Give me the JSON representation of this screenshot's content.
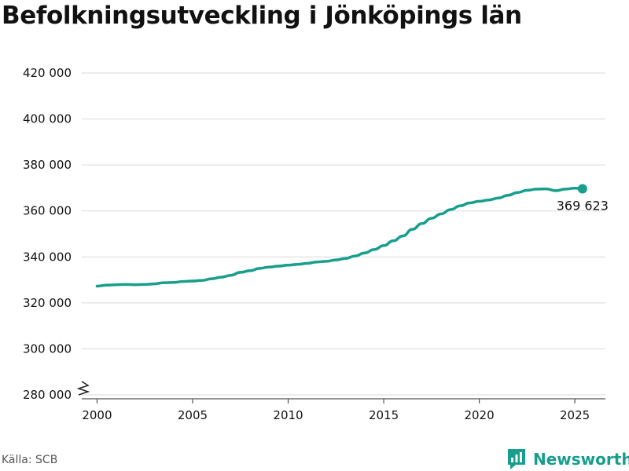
{
  "title": "Befolkningsutveckling i Jönköpings län",
  "source": "Källa: SCB",
  "brand": {
    "name": "Newsworthy",
    "icon": "newsworthy-logo-icon"
  },
  "colors": {
    "line": "#179e8c",
    "grid": "#d9d9d9",
    "axis": "#555555",
    "text": "#111111"
  },
  "chart_data": {
    "type": "line",
    "title": "Befolkningsutveckling i Jönköpings län",
    "xlabel": "",
    "ylabel": "",
    "xlim": [
      1999.2,
      2026.6
    ],
    "ylim": [
      280000,
      420000
    ],
    "y_axis_break": true,
    "grid": "horizontal",
    "x_ticks": [
      2000,
      2005,
      2010,
      2015,
      2020,
      2025
    ],
    "x_tick_labels": [
      "2000",
      "2005",
      "2010",
      "2015",
      "2020",
      "2025"
    ],
    "y_ticks": [
      280000,
      300000,
      320000,
      340000,
      360000,
      380000,
      400000,
      420000
    ],
    "y_tick_labels": [
      "280 000",
      "300 000",
      "320 000",
      "340 000",
      "360 000",
      "380 000",
      "400 000",
      "420 000"
    ],
    "series": [
      {
        "x": [
          2000.0,
          2000.5,
          2001.0,
          2001.5,
          2002.0,
          2002.5,
          2003.0,
          2003.5,
          2004.0,
          2004.5,
          2005.0,
          2005.5,
          2006.0,
          2006.5,
          2007.0,
          2007.5,
          2008.0,
          2008.5,
          2009.0,
          2009.5,
          2010.0,
          2010.5,
          2011.0,
          2011.5,
          2012.0,
          2012.5,
          2013.0,
          2013.5,
          2014.0,
          2014.5,
          2015.0,
          2015.5,
          2016.0,
          2016.5,
          2017.0,
          2017.5,
          2018.0,
          2018.5,
          2019.0,
          2019.5,
          2020.0,
          2020.5,
          2021.0,
          2021.5,
          2022.0,
          2022.5,
          2023.0,
          2023.5,
          2024.0,
          2024.5,
          2025.0,
          2025.4
        ],
        "y": [
          327300,
          327700,
          327900,
          328000,
          327900,
          328000,
          328300,
          328800,
          328900,
          329300,
          329500,
          329800,
          330500,
          331200,
          332000,
          333300,
          334000,
          335000,
          335600,
          336000,
          336400,
          336800,
          337200,
          337800,
          338100,
          338700,
          339300,
          340400,
          341700,
          343200,
          344900,
          347000,
          349100,
          352000,
          354500,
          356800,
          358700,
          360600,
          362200,
          363500,
          364200,
          364800,
          365600,
          366800,
          368000,
          369000,
          369500,
          369600,
          368800,
          369500,
          369900,
          369623
        ]
      }
    ],
    "annotations": [
      {
        "text": "369 623",
        "x": 2025.4,
        "y": 369623
      }
    ]
  }
}
